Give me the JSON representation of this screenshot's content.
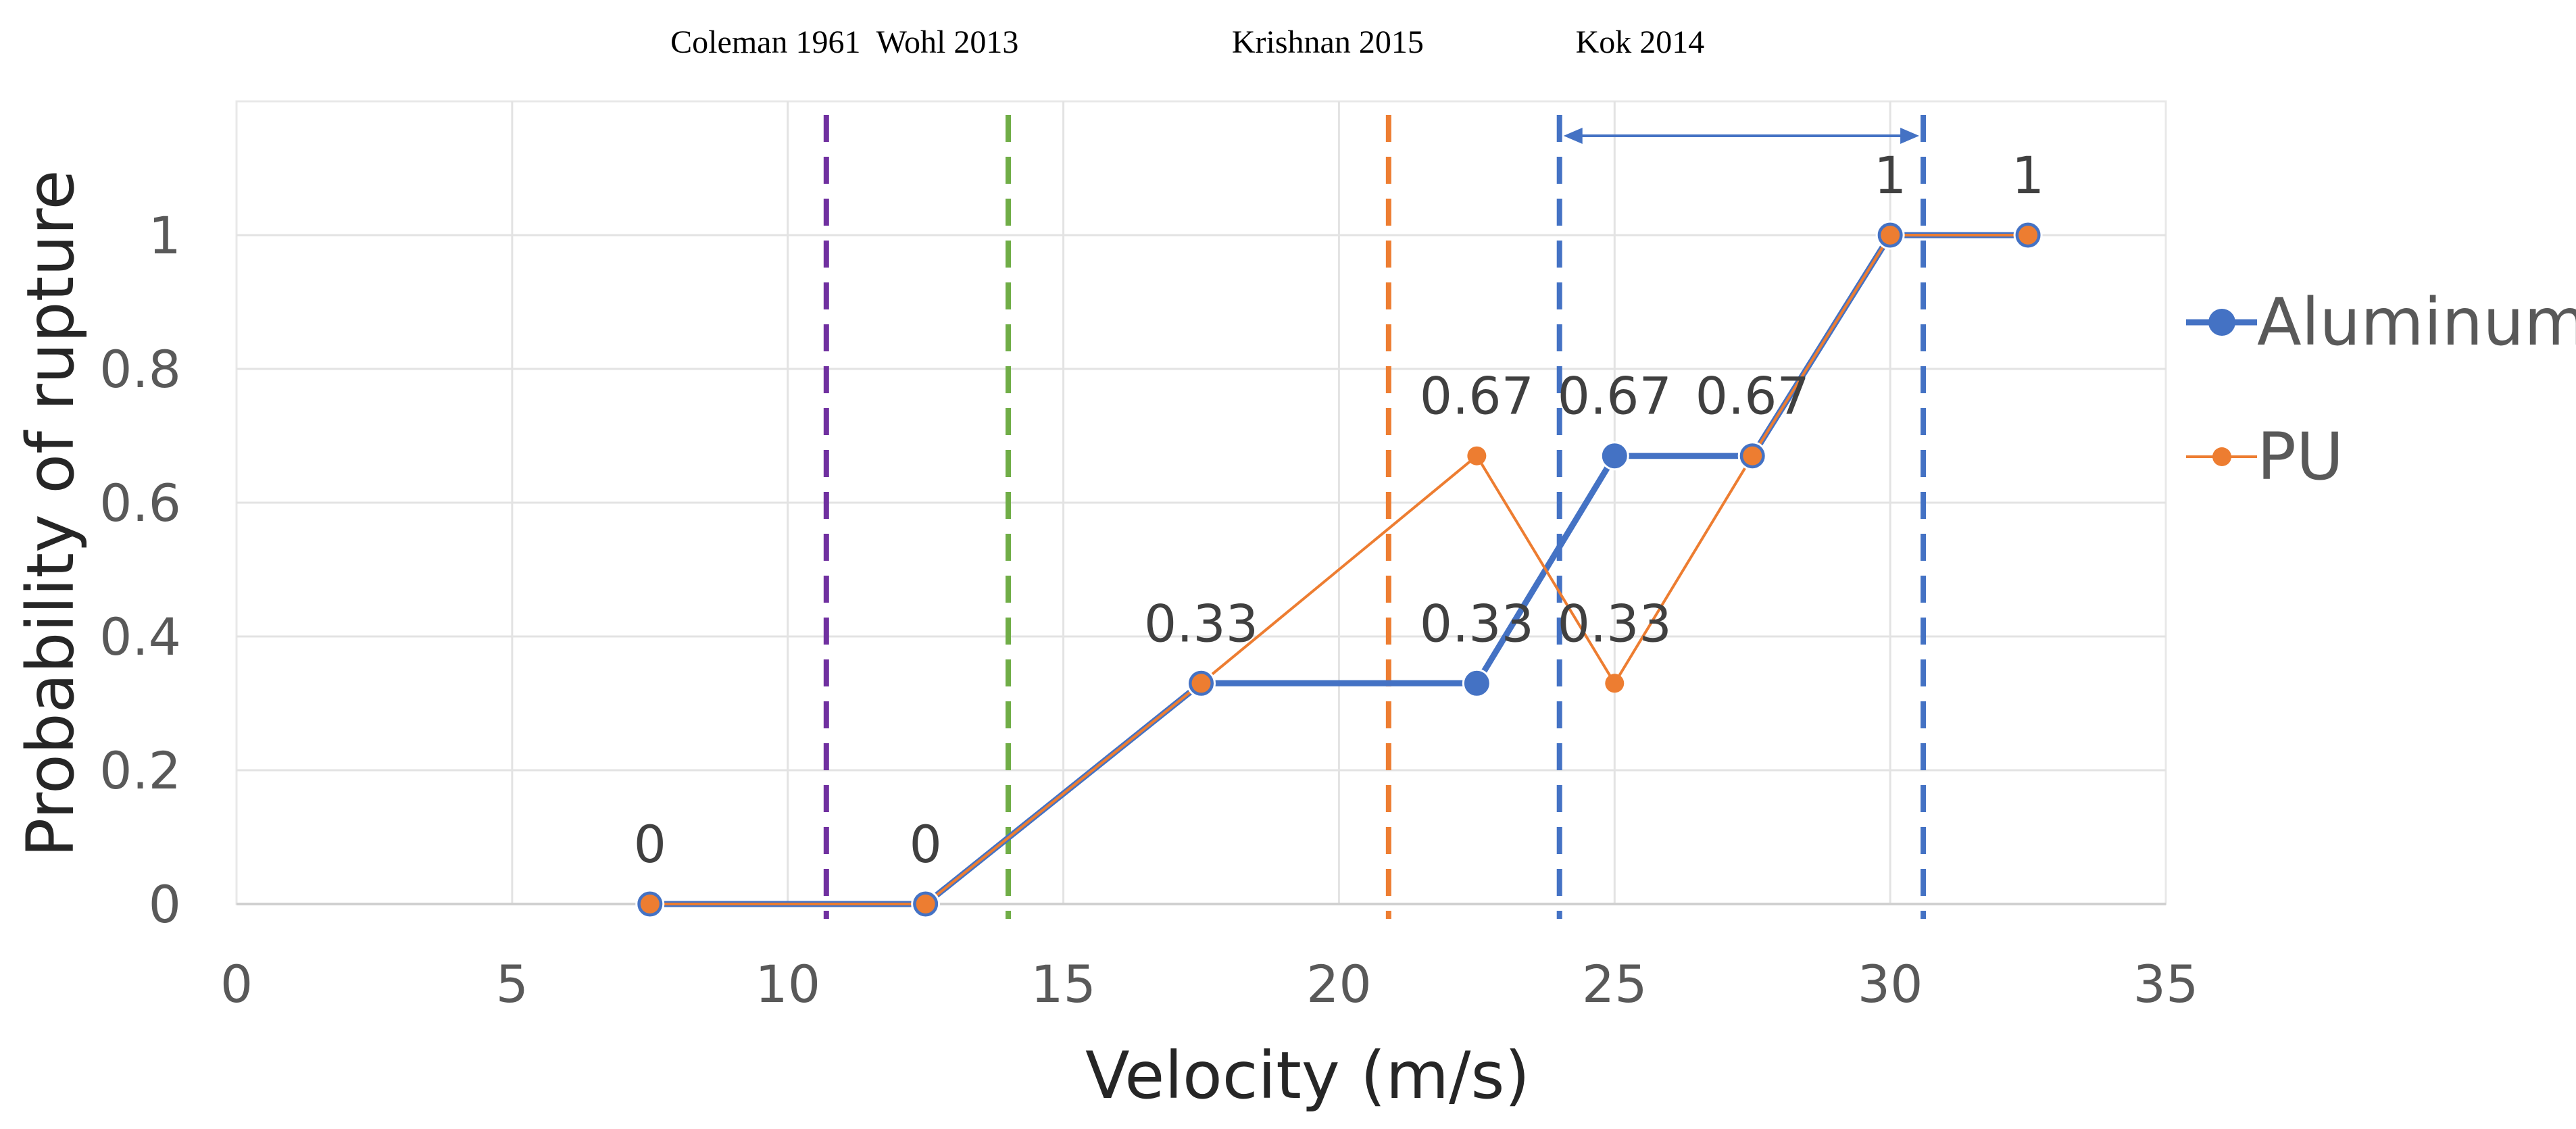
{
  "chart_data": {
    "type": "line",
    "title": "",
    "xlabel": "Velocity (m/s)",
    "ylabel": "Probability of rupture",
    "xlim": [
      0,
      35
    ],
    "ylim": [
      0,
      1.2
    ],
    "xticks": [
      0,
      5,
      10,
      15,
      20,
      25,
      30,
      35
    ],
    "xtick_labels": [
      "0",
      "5",
      "10",
      "15",
      "20",
      "25",
      "30",
      "35"
    ],
    "yticks": [
      0,
      0.2,
      0.4,
      0.6,
      0.8,
      1
    ],
    "ytick_labels": [
      "0",
      "0.2",
      "0.4",
      "0.6",
      "0.8",
      "1"
    ],
    "grid": true,
    "legend_position": "right",
    "series": [
      {
        "name": "Aluminum",
        "color": "#4472C4",
        "x": [
          7.5,
          12.5,
          17.5,
          22.5,
          25,
          27.5,
          30,
          32.5
        ],
        "y": [
          0,
          0,
          0.33,
          0.33,
          0.67,
          0.67,
          1,
          1
        ]
      },
      {
        "name": "PU",
        "color": "#ED7D31",
        "x": [
          7.5,
          12.5,
          17.5,
          22.5,
          25,
          27.5,
          30,
          32.5
        ],
        "y": [
          0,
          0,
          0.33,
          0.67,
          0.33,
          0.67,
          1,
          1
        ]
      }
    ],
    "data_labels": [
      {
        "text": "0",
        "x": 7.5,
        "y": 0
      },
      {
        "text": "0",
        "x": 12.5,
        "y": 0
      },
      {
        "text": "0.33",
        "x": 17.5,
        "y": 0.33
      },
      {
        "text": "0.67",
        "x": 22.5,
        "y": 0.67
      },
      {
        "text": "0.33",
        "x": 22.5,
        "y": 0.33
      },
      {
        "text": "0.67",
        "x": 25,
        "y": 0.67
      },
      {
        "text": "0.33",
        "x": 25,
        "y": 0.33
      },
      {
        "text": "0.67",
        "x": 27.5,
        "y": 0.67
      },
      {
        "text": "1",
        "x": 30,
        "y": 1
      },
      {
        "text": "1",
        "x": 32.5,
        "y": 1
      }
    ],
    "reference_lines": [
      {
        "label": "Coleman 1961",
        "x": 10.7,
        "color": "#7030A0"
      },
      {
        "label": "Wohl 2013",
        "x": 14,
        "color": "#70AD47"
      },
      {
        "label": "Krishnan 2015",
        "x": 20.9,
        "color": "#ED7D31"
      },
      {
        "label": "Kok 2014",
        "x": 24,
        "color": "#4472C4"
      },
      {
        "label": "",
        "x": 30.6,
        "color": "#4472C4"
      }
    ],
    "range_annotation": {
      "from": 24,
      "to": 30.6,
      "color": "#4472C4"
    }
  }
}
